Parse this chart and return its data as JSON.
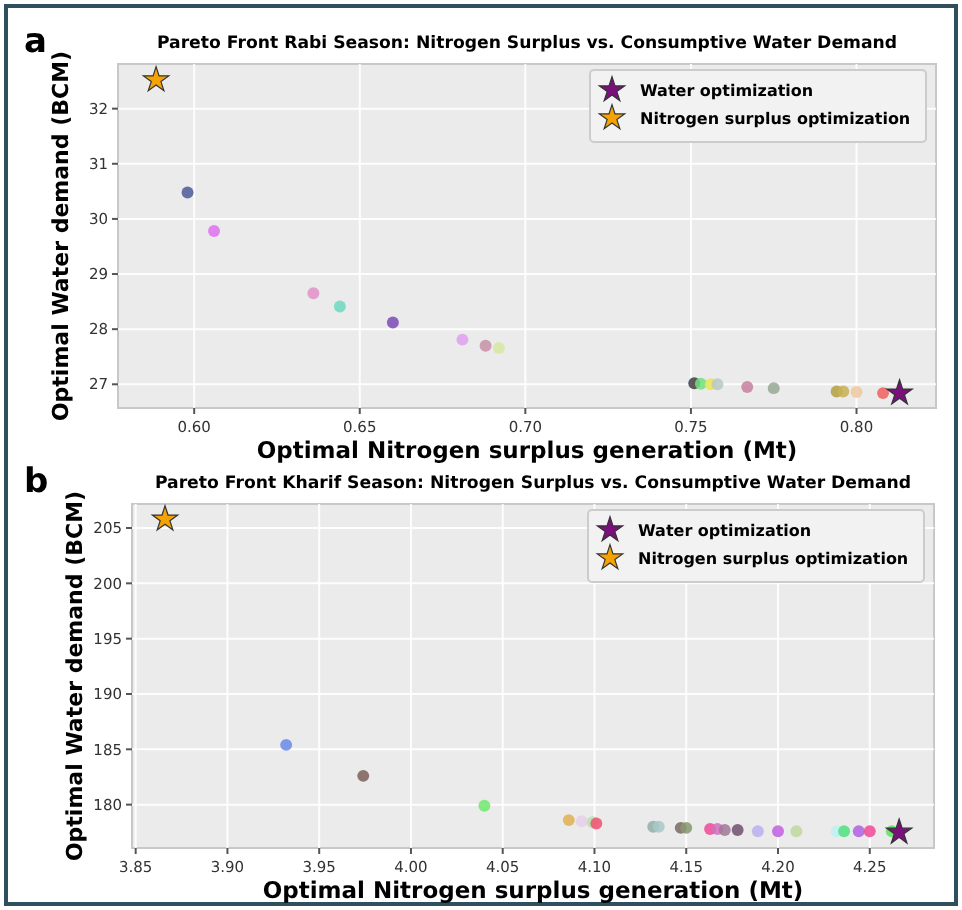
{
  "chart_data": [
    {
      "type": "scatter",
      "title": "Pareto Front Rabi Season: Nitrogen Surplus vs. Consumptive Water Demand",
      "xlabel": "Optimal Nitrogen surplus generation (Mt)",
      "ylabel": "Optimal Water demand (BCM)",
      "annotations": [
        "a"
      ],
      "xlim": [
        0.577,
        0.824
      ],
      "ylim": [
        26.57,
        32.81
      ],
      "xticks": [
        {
          "value": 0.6,
          "label": "0.60"
        },
        {
          "value": 0.65,
          "label": "0.65"
        },
        {
          "value": 0.7,
          "label": "0.70"
        },
        {
          "value": 0.75,
          "label": "0.75"
        },
        {
          "value": 0.8,
          "label": "0.80"
        }
      ],
      "yticks": [
        27,
        28,
        29,
        30,
        31,
        32
      ],
      "grid": true,
      "legend": "top right",
      "marker": "circle",
      "series": [
        {
          "x": [
            0.598,
            0.606,
            0.636,
            0.644,
            0.66,
            0.681,
            0.688,
            0.692,
            0.751,
            0.753,
            0.756,
            0.758,
            0.767,
            0.775,
            0.794,
            0.796,
            0.8,
            0.808
          ],
          "values": [
            30.48,
            29.78,
            28.65,
            28.41,
            28.12,
            27.81,
            27.7,
            27.66,
            27.02,
            27.01,
            27.0,
            27.0,
            26.95,
            26.93,
            26.87,
            26.87,
            26.86,
            26.84
          ],
          "colors": [
            "#4a5a9a",
            "#e070f0",
            "#e090c8",
            "#70d8c0",
            "#7a4ab8",
            "#e0a0f0",
            "#c890a8",
            "#d8e8a0",
            "#404040",
            "#70e080",
            "#e8e850",
            "#b8c8c8",
            "#c880a0",
            "#98a898",
            "#b0a040",
            "#c8b050",
            "#f0c8a0",
            "#f06060"
          ]
        },
        {
          "name": "Water optimization",
          "marker": "star",
          "color": "#7b0f7b",
          "x": [
            0.813
          ],
          "values": [
            26.84
          ]
        },
        {
          "name": "Nitrogen surplus optimization",
          "marker": "star",
          "color": "#f5a300",
          "x": [
            0.5885
          ],
          "values": [
            32.52
          ]
        }
      ]
    },
    {
      "type": "scatter",
      "title": "Pareto Front Kharif Season: Nitrogen Surplus vs. Consumptive Water Demand",
      "xlabel": "Optimal Nitrogen surplus generation (Mt)",
      "ylabel": "Optimal Water demand (BCM)",
      "annotations": [
        "b"
      ],
      "xlim": [
        3.848,
        4.285
      ],
      "ylim": [
        176.08,
        207.17
      ],
      "xticks": [
        {
          "value": 3.85,
          "label": "3.85"
        },
        {
          "value": 3.9,
          "label": "3.90"
        },
        {
          "value": 3.95,
          "label": "3.95"
        },
        {
          "value": 4.0,
          "label": "4.00"
        },
        {
          "value": 4.05,
          "label": "4.05"
        },
        {
          "value": 4.1,
          "label": "4.10"
        },
        {
          "value": 4.15,
          "label": "4.15"
        },
        {
          "value": 4.2,
          "label": "4.20"
        },
        {
          "value": 4.25,
          "label": "4.25"
        }
      ],
      "yticks": [
        180,
        185,
        190,
        195,
        200,
        205
      ],
      "grid": true,
      "legend": "top right",
      "marker": "circle",
      "series": [
        {
          "x": [
            3.932,
            3.974,
            4.04,
            4.086,
            4.093,
            4.099,
            4.101,
            4.132,
            4.135,
            4.147,
            4.15,
            4.163,
            4.167,
            4.171,
            4.178,
            4.189,
            4.2,
            4.21,
            4.232,
            4.236,
            4.244,
            4.25,
            4.262
          ],
          "values": [
            185.4,
            182.6,
            179.9,
            178.6,
            178.5,
            178.4,
            178.3,
            178.0,
            178.0,
            177.9,
            177.9,
            177.8,
            177.8,
            177.7,
            177.7,
            177.6,
            177.6,
            177.6,
            177.6,
            177.6,
            177.6,
            177.6,
            177.6
          ],
          "colors": [
            "#6a8ae8",
            "#7a6058",
            "#70e870",
            "#e0b050",
            "#e8d0e8",
            "#b8e0b0",
            "#f05070",
            "#90b0a8",
            "#a8c8c8",
            "#7a6a60",
            "#889870",
            "#f04898",
            "#d070c0",
            "#a07898",
            "#705070",
            "#b8b0f0",
            "#c060e0",
            "#c0d8a0",
            "#c0f0f0",
            "#50e080",
            "#b060e0",
            "#f04898",
            "#60e060"
          ]
        },
        {
          "name": "Water optimization",
          "marker": "star",
          "color": "#7b0f7b",
          "x": [
            4.266
          ],
          "values": [
            177.5
          ]
        },
        {
          "name": "Nitrogen surplus optimization",
          "marker": "star",
          "color": "#f5a300",
          "x": [
            3.866
          ],
          "values": [
            205.8
          ]
        }
      ]
    }
  ]
}
